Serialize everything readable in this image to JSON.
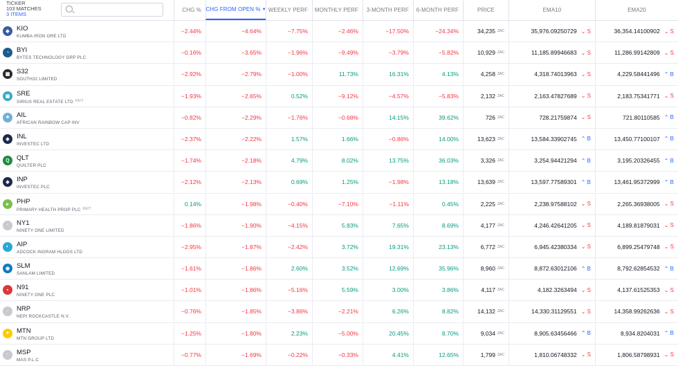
{
  "header": {
    "ticker_label": "TICKER",
    "matches": "103 MATCHES",
    "items": "3 ITEMS",
    "columns": [
      "CHG %",
      "CHG FROM OPEN %",
      "WEEKLY PERF",
      "MONTHLY PERF",
      "3-MONTH PERF",
      "6-MONTH PERF",
      "PRICE",
      "EMA10",
      "EMA20"
    ]
  },
  "currency_unit": "ZAC",
  "colors": {
    "negative": "#f23645",
    "positive": "#089981",
    "buy": "#2962ff",
    "accent": "#2962ff"
  },
  "rows": [
    {
      "symbol": "KIO",
      "name": "KUMBA IRON ORE LTD",
      "tag": "",
      "logo": {
        "icon": "kumba-logo-icon",
        "color": "#3b5ba5",
        "glyph": "◆"
      },
      "chg": "−2.44%",
      "chg_open": "−4.64%",
      "weekly": "−7.75%",
      "monthly": "−2.46%",
      "m3": "−17.50%",
      "m6": "−24.34%",
      "price": "34,235",
      "ema10": "35,976.09250729",
      "ema10_sig": "S",
      "ema20": "36,354.14100902",
      "ema20_sig": "S"
    },
    {
      "symbol": "BYI",
      "name": "BYTES TECHNOLOGY GRP PLC",
      "tag": "",
      "logo": {
        "icon": "bytes-logo-icon",
        "color": "#1c5c8c",
        "glyph": "◔"
      },
      "chg": "−0.16%",
      "chg_open": "−3.65%",
      "weekly": "−1.96%",
      "monthly": "−9.49%",
      "m3": "−3.79%",
      "m6": "−5.82%",
      "price": "10,929",
      "ema10": "11,185.89946683",
      "ema10_sig": "S",
      "ema20": "11,286.99142809",
      "ema20_sig": "S"
    },
    {
      "symbol": "S32",
      "name": "SOUTH32 LIMITED",
      "tag": "",
      "logo": {
        "icon": "south32-logo-icon",
        "color": "#2b2b2b",
        "glyph": "▦"
      },
      "chg": "−2.92%",
      "chg_open": "−2.79%",
      "weekly": "−1.00%",
      "monthly": "11.73%",
      "m3": "16.31%",
      "m6": "4.13%",
      "price": "4,258",
      "ema10": "4,318.74013963",
      "ema10_sig": "S",
      "ema20": "4,229.58441496",
      "ema20_sig": "B"
    },
    {
      "symbol": "SRE",
      "name": "SIRIUS REAL ESTATE LTD",
      "tag": "REIT",
      "logo": {
        "icon": "sirius-logo-icon",
        "color": "#39a9c9",
        "glyph": "▣"
      },
      "chg": "−1.93%",
      "chg_open": "−2.65%",
      "weekly": "0.52%",
      "monthly": "−9.12%",
      "m3": "−4.57%",
      "m6": "−5.83%",
      "price": "2,132",
      "ema10": "2,163.47827689",
      "ema10_sig": "S",
      "ema20": "2,183.75341771",
      "ema20_sig": "S"
    },
    {
      "symbol": "AIL",
      "name": "AFRICAN RAINBOW CAP INV",
      "tag": "",
      "logo": {
        "icon": "arc-tree-logo-icon",
        "color": "#6fb0d6",
        "glyph": "♣"
      },
      "chg": "−0.82%",
      "chg_open": "−2.29%",
      "weekly": "−1.76%",
      "monthly": "−0.68%",
      "m3": "14.15%",
      "m6": "39.62%",
      "price": "726",
      "ema10": "728.21759874",
      "ema10_sig": "S",
      "ema20": "721.80110585",
      "ema20_sig": "B"
    },
    {
      "symbol": "INL",
      "name": "INVESTEC LTD",
      "tag": "",
      "logo": {
        "icon": "investec-logo-icon",
        "color": "#1b2a4a",
        "glyph": "◈"
      },
      "chg": "−2.37%",
      "chg_open": "−2.22%",
      "weekly": "1.57%",
      "monthly": "1.66%",
      "m3": "−0.86%",
      "m6": "14.00%",
      "price": "13,623",
      "ema10": "13,584.33902745",
      "ema10_sig": "B",
      "ema20": "13,450.77100107",
      "ema20_sig": "B"
    },
    {
      "symbol": "QLT",
      "name": "QUILTER PLC",
      "tag": "",
      "logo": {
        "icon": "quilter-logo-icon",
        "color": "#1e8a3c",
        "glyph": "Q"
      },
      "chg": "−1.74%",
      "chg_open": "−2.18%",
      "weekly": "4.79%",
      "monthly": "8.02%",
      "m3": "13.75%",
      "m6": "36.03%",
      "price": "3,326",
      "ema10": "3,254.94421294",
      "ema10_sig": "B",
      "ema20": "3,195.20326455",
      "ema20_sig": "B"
    },
    {
      "symbol": "INP",
      "name": "INVESTEC PLC",
      "tag": "",
      "logo": {
        "icon": "investec-logo-icon",
        "color": "#1b2a4a",
        "glyph": "◈"
      },
      "chg": "−2.12%",
      "chg_open": "−2.13%",
      "weekly": "0.69%",
      "monthly": "1.25%",
      "m3": "−1.98%",
      "m6": "13.18%",
      "price": "13,639",
      "ema10": "13,597.77589301",
      "ema10_sig": "B",
      "ema20": "13,461.95372999",
      "ema20_sig": "B"
    },
    {
      "symbol": "PHP",
      "name": "PRIMARY HEALTH PROP PLC",
      "tag": "REIT",
      "logo": {
        "icon": "primary-health-logo-icon",
        "color": "#7cc04b",
        "glyph": "▸"
      },
      "chg": "0.14%",
      "chg_open": "−1.98%",
      "weekly": "−0.40%",
      "monthly": "−7.10%",
      "m3": "−1.11%",
      "m6": "0.45%",
      "price": "2,225",
      "ema10": "2,238.97588102",
      "ema10_sig": "S",
      "ema20": "2,265.36938005",
      "ema20_sig": "S"
    },
    {
      "symbol": "NY1",
      "name": "NINETY ONE LIMITED",
      "tag": "",
      "logo": {
        "icon": "ninety-one-logo-icon",
        "color": "#c9c9cf",
        "glyph": "·"
      },
      "chg": "−1.86%",
      "chg_open": "−1.90%",
      "weekly": "−4.15%",
      "monthly": "5.83%",
      "m3": "7.65%",
      "m6": "8.69%",
      "price": "4,177",
      "ema10": "4,246.42641205",
      "ema10_sig": "S",
      "ema20": "4,189.81879031",
      "ema20_sig": "S"
    },
    {
      "symbol": "AIP",
      "name": "ADCOCK INGRAM HLDGS LTD",
      "tag": "",
      "logo": {
        "icon": "adcock-logo-icon",
        "color": "#2aa7d8",
        "glyph": "◐"
      },
      "chg": "−2.95%",
      "chg_open": "−1.87%",
      "weekly": "−2.42%",
      "monthly": "3.72%",
      "m3": "19.31%",
      "m6": "23.13%",
      "price": "6,772",
      "ema10": "6,945.42380334",
      "ema10_sig": "S",
      "ema20": "6,899.25479748",
      "ema20_sig": "S"
    },
    {
      "symbol": "SLM",
      "name": "SANLAM LIMITED",
      "tag": "",
      "logo": {
        "icon": "sanlam-logo-icon",
        "color": "#0f7bbf",
        "glyph": "◉"
      },
      "chg": "−1.61%",
      "chg_open": "−1.86%",
      "weekly": "2.60%",
      "monthly": "3.52%",
      "m3": "12.69%",
      "m6": "35.96%",
      "price": "8,960",
      "ema10": "8,872.63012106",
      "ema10_sig": "B",
      "ema20": "8,792.62854532",
      "ema20_sig": "B"
    },
    {
      "symbol": "N91",
      "name": "NINETY ONE PLC",
      "tag": "",
      "logo": {
        "icon": "ninety-one-logo-icon",
        "color": "#d83a3a",
        "glyph": "▪"
      },
      "chg": "−1.01%",
      "chg_open": "−1.86%",
      "weekly": "−5.16%",
      "monthly": "5.59%",
      "m3": "3.00%",
      "m6": "3.86%",
      "price": "4,117",
      "ema10": "4,182.3263494",
      "ema10_sig": "S",
      "ema20": "4,137.61525353",
      "ema20_sig": "S"
    },
    {
      "symbol": "NRP",
      "name": "NEPI ROCKCASTLE N.V.",
      "tag": "",
      "logo": {
        "icon": "nepi-logo-icon",
        "color": "#c9c9cf",
        "glyph": "·"
      },
      "chg": "−0.76%",
      "chg_open": "−1.85%",
      "weekly": "−3.86%",
      "monthly": "−2.21%",
      "m3": "6.26%",
      "m6": "8.82%",
      "price": "14,132",
      "ema10": "14,330.31129551",
      "ema10_sig": "S",
      "ema20": "14,358.99262636",
      "ema20_sig": "S"
    },
    {
      "symbol": "MTN",
      "name": "MTN GROUP LTD",
      "tag": "",
      "logo": {
        "icon": "mtn-logo-icon",
        "color": "#ffcb05",
        "glyph": "●"
      },
      "chg": "−1.25%",
      "chg_open": "−1.80%",
      "weekly": "2.23%",
      "monthly": "−5.00%",
      "m3": "20.45%",
      "m6": "8.70%",
      "price": "9,034",
      "ema10": "8,905.63456466",
      "ema10_sig": "B",
      "ema20": "8,934.8204031",
      "ema20_sig": "B"
    },
    {
      "symbol": "MSP",
      "name": "MAS P.L.C",
      "tag": "",
      "logo": {
        "icon": "mas-logo-icon",
        "color": "#c9c9cf",
        "glyph": "·"
      },
      "chg": "−0.77%",
      "chg_open": "−1.69%",
      "weekly": "−0.22%",
      "monthly": "−0.33%",
      "m3": "4.41%",
      "m6": "12.65%",
      "price": "1,799",
      "ema10": "1,810.06748332",
      "ema10_sig": "S",
      "ema20": "1,806.58798931",
      "ema20_sig": "S"
    }
  ]
}
